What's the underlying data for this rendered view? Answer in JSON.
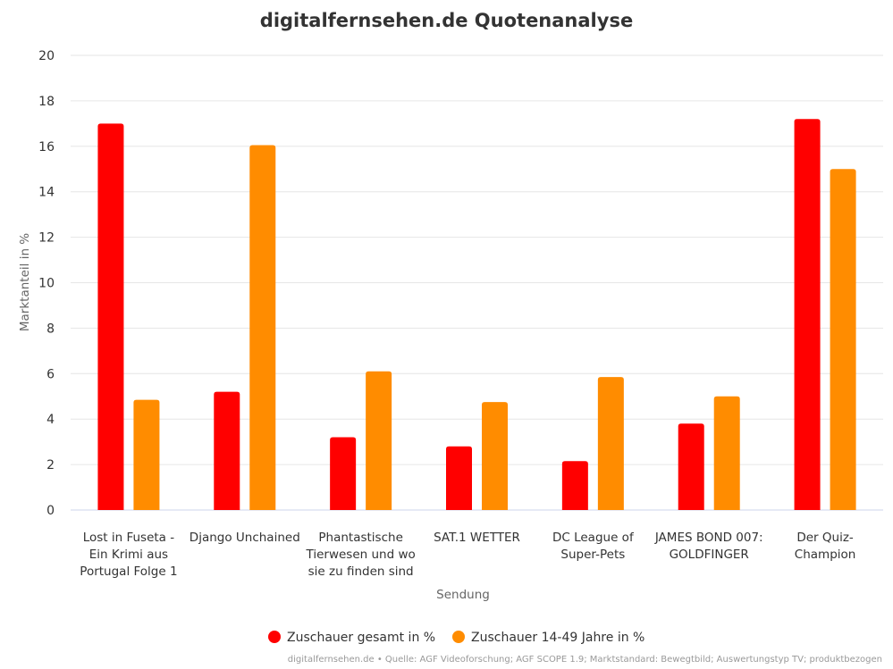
{
  "chart_data": {
    "type": "bar",
    "title": "digitalfernsehen.de Quotenanalyse",
    "xlabel": "Sendung",
    "ylabel": "Marktanteil in %",
    "ylim": [
      0,
      20
    ],
    "yticks": [
      0,
      2,
      4,
      6,
      8,
      10,
      12,
      14,
      16,
      18,
      20
    ],
    "grid": true,
    "legend_position": "bottom-center",
    "categories": [
      [
        "Lost in Fuseta -",
        "Ein Krimi aus",
        "Portugal Folge 1"
      ],
      [
        "Django Unchained"
      ],
      [
        "Phantastische",
        "Tierwesen und wo",
        "sie zu finden sind"
      ],
      [
        "SAT.1 WETTER"
      ],
      [
        "DC League of",
        "Super-Pets"
      ],
      [
        "JAMES BOND 007:",
        "GOLDFINGER"
      ],
      [
        "Der Quiz-",
        "Champion"
      ]
    ],
    "series": [
      {
        "name": "Zuschauer gesamt in %",
        "color": "#ff0000",
        "values": [
          17.0,
          5.2,
          3.2,
          2.8,
          2.15,
          3.8,
          17.2
        ]
      },
      {
        "name": "Zuschauer 14-49 Jahre in %",
        "color": "#ff8c00",
        "values": [
          4.85,
          16.05,
          6.1,
          4.75,
          5.85,
          5.0,
          15.0
        ]
      }
    ],
    "credits": "digitalfernsehen.de • Quelle: AGF Videoforschung; AGF SCOPE 1.9; Marktstandard: Bewegtbild; Auswertungstyp TV; produktbezogen"
  }
}
